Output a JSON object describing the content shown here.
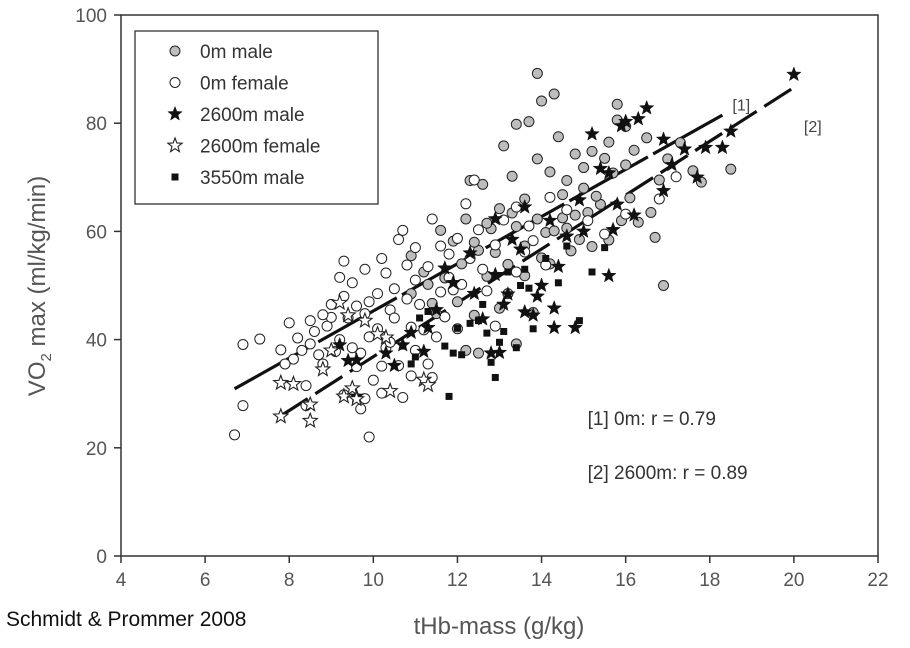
{
  "chart_data": {
    "type": "scatter",
    "title": "",
    "xlabel": "tHb-mass (g/kg)",
    "ylabel_main": "VO",
    "ylabel_sub": "2",
    "ylabel_rest": " max (ml/kg/min)",
    "xlim": [
      4,
      22
    ],
    "ylim": [
      0,
      100
    ],
    "x_ticks": [
      4,
      6,
      8,
      10,
      12,
      14,
      16,
      18,
      20,
      22
    ],
    "y_ticks": [
      0,
      20,
      40,
      60,
      80,
      100
    ],
    "grid": false,
    "legend_position": "top-left",
    "series": [
      {
        "name": "0m male",
        "marker": "circle-gray",
        "points": [
          [
            13.9,
            89.2
          ],
          [
            14.0,
            84.1
          ],
          [
            14.3,
            85.4
          ],
          [
            14.4,
            77.5
          ],
          [
            13.7,
            80.3
          ],
          [
            13.4,
            79.8
          ],
          [
            15.2,
            74.8
          ],
          [
            14.8,
            74.3
          ],
          [
            15.6,
            76.5
          ],
          [
            16.0,
            79.4
          ],
          [
            15.8,
            83.5
          ],
          [
            16.2,
            75.0
          ],
          [
            15.8,
            80.6
          ],
          [
            16.5,
            77.3
          ],
          [
            17.0,
            73.4
          ],
          [
            17.6,
            71.2
          ],
          [
            17.3,
            76.4
          ],
          [
            17.8,
            69.1
          ],
          [
            18.5,
            71.5
          ],
          [
            16.8,
            69.5
          ],
          [
            16.6,
            63.5
          ],
          [
            16.7,
            58.9
          ],
          [
            16.9,
            50.0
          ],
          [
            15.6,
            58.4
          ],
          [
            15.2,
            57.2
          ],
          [
            14.8,
            63.0
          ],
          [
            13.1,
            75.8
          ],
          [
            13.3,
            70.2
          ],
          [
            13.9,
            73.4
          ],
          [
            14.2,
            71.0
          ],
          [
            12.3,
            69.4
          ],
          [
            12.6,
            68.7
          ],
          [
            13.0,
            64.2
          ],
          [
            12.8,
            60.5
          ],
          [
            13.4,
            60.9
          ],
          [
            13.6,
            57.3
          ],
          [
            14.1,
            59.8
          ],
          [
            14.5,
            66.8
          ],
          [
            14.6,
            69.4
          ],
          [
            15.0,
            68.0
          ],
          [
            15.4,
            65.0
          ],
          [
            15.7,
            70.8
          ],
          [
            16.1,
            66.2
          ],
          [
            16.3,
            61.7
          ],
          [
            16.0,
            72.3
          ],
          [
            12.9,
            56.1
          ],
          [
            13.2,
            53.9
          ],
          [
            13.6,
            51.8
          ],
          [
            14.0,
            55.1
          ],
          [
            14.3,
            60.1
          ],
          [
            14.7,
            56.4
          ],
          [
            12.5,
            56.5
          ],
          [
            12.7,
            51.7
          ],
          [
            12.1,
            54.0
          ],
          [
            11.9,
            58.2
          ],
          [
            12.2,
            62.3
          ],
          [
            11.6,
            60.2
          ],
          [
            11.7,
            51.4
          ],
          [
            11.3,
            50.2
          ],
          [
            11.4,
            46.7
          ],
          [
            12.0,
            47.0
          ],
          [
            12.4,
            44.5
          ],
          [
            12.0,
            42.0
          ],
          [
            12.2,
            38.0
          ],
          [
            12.5,
            37.5
          ],
          [
            13.2,
            48.5
          ],
          [
            13.4,
            39.2
          ],
          [
            13.8,
            45.0
          ],
          [
            13.0,
            45.8
          ],
          [
            14.2,
            54.0
          ],
          [
            14.5,
            62.5
          ],
          [
            14.9,
            58.5
          ],
          [
            15.1,
            63.5
          ],
          [
            15.3,
            66.5
          ],
          [
            15.9,
            62.0
          ],
          [
            11.2,
            52.5
          ],
          [
            10.9,
            55.5
          ],
          [
            11.5,
            44.8
          ],
          [
            10.9,
            48.5
          ],
          [
            12.7,
            61.5
          ],
          [
            13.6,
            66.0
          ],
          [
            13.9,
            62.3
          ],
          [
            14.6,
            60.6
          ],
          [
            15.0,
            71.8
          ],
          [
            15.5,
            73.5
          ],
          [
            13.3,
            63.4
          ],
          [
            12.4,
            58.0
          ]
        ]
      },
      {
        "name": "0m female",
        "marker": "circle-open",
        "points": [
          [
            6.7,
            22.4
          ],
          [
            6.9,
            27.8
          ],
          [
            6.9,
            39.1
          ],
          [
            7.3,
            40.1
          ],
          [
            7.8,
            38.1
          ],
          [
            8.0,
            43.1
          ],
          [
            8.1,
            36.4
          ],
          [
            8.2,
            40.3
          ],
          [
            8.5,
            43.5
          ],
          [
            8.5,
            39.2
          ],
          [
            8.7,
            37.2
          ],
          [
            8.9,
            42.5
          ],
          [
            8.8,
            35.5
          ],
          [
            9.0,
            44.1
          ],
          [
            9.2,
            40.0
          ],
          [
            9.3,
            48.0
          ],
          [
            9.2,
            51.5
          ],
          [
            9.3,
            54.5
          ],
          [
            9.5,
            50.5
          ],
          [
            9.6,
            46.2
          ],
          [
            9.8,
            44.8
          ],
          [
            9.9,
            40.5
          ],
          [
            9.7,
            37.5
          ],
          [
            9.6,
            35.0
          ],
          [
            9.8,
            29.1
          ],
          [
            9.9,
            22.0
          ],
          [
            9.3,
            29.8
          ],
          [
            9.7,
            27.2
          ],
          [
            10.0,
            32.5
          ],
          [
            10.2,
            35.1
          ],
          [
            10.3,
            38.5
          ],
          [
            10.1,
            42.0
          ],
          [
            10.4,
            45.5
          ],
          [
            10.5,
            49.4
          ],
          [
            10.3,
            52.3
          ],
          [
            10.2,
            55.0
          ],
          [
            10.6,
            58.5
          ],
          [
            10.7,
            60.2
          ],
          [
            10.8,
            53.8
          ],
          [
            11.0,
            51.0
          ],
          [
            11.1,
            46.5
          ],
          [
            11.2,
            41.8
          ],
          [
            11.0,
            38.0
          ],
          [
            10.9,
            33.3
          ],
          [
            10.7,
            29.3
          ],
          [
            10.6,
            35.2
          ],
          [
            11.3,
            35.5
          ],
          [
            11.5,
            40.5
          ],
          [
            11.7,
            44.2
          ],
          [
            11.9,
            49.2
          ],
          [
            11.8,
            55.8
          ],
          [
            12.0,
            58.7
          ],
          [
            12.2,
            65.1
          ],
          [
            12.4,
            69.5
          ],
          [
            11.4,
            62.3
          ],
          [
            11.6,
            57.3
          ],
          [
            11.3,
            53.5
          ],
          [
            11.6,
            48.8
          ],
          [
            10.5,
            44.0
          ],
          [
            10.8,
            47.5
          ],
          [
            9.9,
            47.0
          ],
          [
            9.4,
            44.0
          ],
          [
            9.0,
            46.5
          ],
          [
            8.6,
            41.5
          ],
          [
            8.3,
            38.0
          ],
          [
            7.9,
            35.5
          ],
          [
            8.4,
            27.8
          ],
          [
            9.5,
            38.5
          ],
          [
            10.4,
            39.5
          ],
          [
            10.9,
            42.3
          ],
          [
            11.8,
            51.5
          ],
          [
            12.1,
            50.2
          ],
          [
            12.7,
            49.0
          ],
          [
            12.6,
            53.0
          ],
          [
            12.9,
            57.5
          ],
          [
            13.1,
            62.1
          ],
          [
            13.4,
            64.5
          ],
          [
            13.7,
            61.0
          ],
          [
            14.2,
            66.3
          ],
          [
            14.6,
            64.0
          ],
          [
            15.1,
            62.0
          ],
          [
            15.5,
            59.5
          ],
          [
            16.0,
            63.2
          ],
          [
            16.8,
            66.0
          ],
          [
            17.2,
            70.1
          ],
          [
            13.8,
            58.3
          ],
          [
            12.5,
            60.3
          ],
          [
            12.3,
            55.0
          ],
          [
            11.0,
            57.0
          ],
          [
            10.1,
            48.5
          ],
          [
            9.8,
            53.0
          ],
          [
            8.8,
            44.6
          ],
          [
            9.1,
            37.8
          ],
          [
            8.4,
            31.5
          ],
          [
            10.2,
            30.1
          ],
          [
            11.4,
            33.0
          ],
          [
            12.9,
            42.5
          ],
          [
            13.4,
            52.5
          ],
          [
            14.1,
            53.8
          ],
          [
            13.6,
            56.2
          ]
        ]
      },
      {
        "name": "2600m male",
        "marker": "star-filled",
        "points": [
          [
            20.0,
            89.0
          ],
          [
            18.5,
            78.5
          ],
          [
            18.3,
            75.5
          ],
          [
            17.9,
            75.5
          ],
          [
            17.4,
            75.2
          ],
          [
            16.9,
            77.0
          ],
          [
            16.9,
            67.5
          ],
          [
            16.5,
            82.8
          ],
          [
            16.3,
            80.8
          ],
          [
            16.0,
            80.3
          ],
          [
            15.9,
            79.5
          ],
          [
            15.2,
            78.0
          ],
          [
            15.4,
            71.6
          ],
          [
            15.6,
            70.8
          ],
          [
            15.8,
            65.0
          ],
          [
            15.7,
            60.3
          ],
          [
            15.6,
            51.8
          ],
          [
            14.8,
            42.2
          ],
          [
            14.3,
            45.8
          ],
          [
            14.3,
            42.2
          ],
          [
            13.8,
            44.5
          ],
          [
            13.6,
            45.1
          ],
          [
            13.0,
            37.6
          ],
          [
            12.8,
            37.5
          ],
          [
            13.1,
            46.5
          ],
          [
            13.2,
            48.4
          ],
          [
            13.9,
            48.0
          ],
          [
            14.0,
            50.0
          ],
          [
            14.4,
            53.5
          ],
          [
            13.5,
            56.7
          ],
          [
            13.3,
            58.5
          ],
          [
            14.6,
            59.1
          ],
          [
            14.2,
            62.0
          ],
          [
            12.3,
            56.0
          ],
          [
            11.7,
            53.2
          ],
          [
            11.9,
            50.5
          ],
          [
            11.3,
            42.2
          ],
          [
            11.2,
            37.8
          ],
          [
            11.2,
            32.5
          ],
          [
            10.7,
            39.0
          ],
          [
            10.3,
            37.5
          ],
          [
            10.5,
            35.2
          ],
          [
            9.6,
            36.2
          ],
          [
            9.2,
            39.0
          ],
          [
            9.4,
            36.1
          ],
          [
            9.6,
            29.5
          ],
          [
            12.6,
            43.8
          ],
          [
            12.9,
            52.0
          ],
          [
            13.6,
            64.5
          ],
          [
            14.9,
            65.8
          ],
          [
            15.0,
            60.0
          ],
          [
            16.2,
            63.0
          ],
          [
            17.1,
            72.3
          ],
          [
            17.7,
            70.0
          ],
          [
            12.4,
            48.5
          ],
          [
            11.5,
            45.5
          ],
          [
            10.9,
            41.3
          ],
          [
            12.9,
            62.3
          ]
        ]
      },
      {
        "name": "2600m female",
        "marker": "star-open",
        "points": [
          [
            7.8,
            25.8
          ],
          [
            7.8,
            32.0
          ],
          [
            8.1,
            31.8
          ],
          [
            8.5,
            28.0
          ],
          [
            8.5,
            25.0
          ],
          [
            9.0,
            38.0
          ],
          [
            9.2,
            46.8
          ],
          [
            9.3,
            29.5
          ],
          [
            9.5,
            31.0
          ],
          [
            9.6,
            29.0
          ],
          [
            10.3,
            40.4
          ],
          [
            10.4,
            30.5
          ],
          [
            11.2,
            32.6
          ],
          [
            11.3,
            31.6
          ],
          [
            9.8,
            43.5
          ],
          [
            10.1,
            41.0
          ],
          [
            8.8,
            34.5
          ],
          [
            9.4,
            44.5
          ]
        ]
      },
      {
        "name": "3550m male",
        "marker": "square-filled",
        "points": [
          [
            11.7,
            38.8
          ],
          [
            11.9,
            37.5
          ],
          [
            12.0,
            42.1
          ],
          [
            12.1,
            37.2
          ],
          [
            12.3,
            43.0
          ],
          [
            12.5,
            43.5
          ],
          [
            11.8,
            29.5
          ],
          [
            12.7,
            41.2
          ],
          [
            12.8,
            35.8
          ],
          [
            13.0,
            39.5
          ],
          [
            13.1,
            41.5
          ],
          [
            13.5,
            50.0
          ],
          [
            13.6,
            53.0
          ],
          [
            13.7,
            49.5
          ],
          [
            13.8,
            42.0
          ],
          [
            14.1,
            55.0
          ],
          [
            14.4,
            50.5
          ],
          [
            14.6,
            57.3
          ],
          [
            14.9,
            43.5
          ],
          [
            15.2,
            52.5
          ],
          [
            15.5,
            57.0
          ],
          [
            13.4,
            38.5
          ],
          [
            13.2,
            52.5
          ],
          [
            12.9,
            33.0
          ],
          [
            10.7,
            38.8
          ],
          [
            10.9,
            35.5
          ],
          [
            11.0,
            36.8
          ],
          [
            11.3,
            45.2
          ],
          [
            11.1,
            44.0
          ],
          [
            12.6,
            46.5
          ]
        ]
      }
    ],
    "fits": [
      {
        "name": "[1]",
        "style": "solid-dashed",
        "x": [
          6.7,
          18.3
        ],
        "y": [
          30.9,
          81.5
        ]
      },
      {
        "name": "[2]",
        "style": "long-dash",
        "x": [
          7.8,
          20.0
        ],
        "y": [
          25.9,
          86.6
        ]
      }
    ],
    "annotations": [
      {
        "text": "[1] 0m:  r = 0.79",
        "x": 15.0,
        "y": 25.5
      },
      {
        "text": "[2] 2600m: r = 0.89",
        "x": 15.0,
        "y": 15.5
      },
      {
        "text": "[1]",
        "x": 18.3,
        "y": 83.5
      },
      {
        "text": "[2]",
        "x": 20.0,
        "y": 79.5
      }
    ]
  },
  "legend": {
    "entries": [
      "0m male",
      "0m female",
      "2600m male",
      "2600m female",
      "3550m male"
    ]
  },
  "credit": "Schmidt & Prommer 2008",
  "colors": {
    "axis": "#333333",
    "gray_fill": "#bdbdbd",
    "marker_stroke": "#222222",
    "dark": "#111111"
  }
}
